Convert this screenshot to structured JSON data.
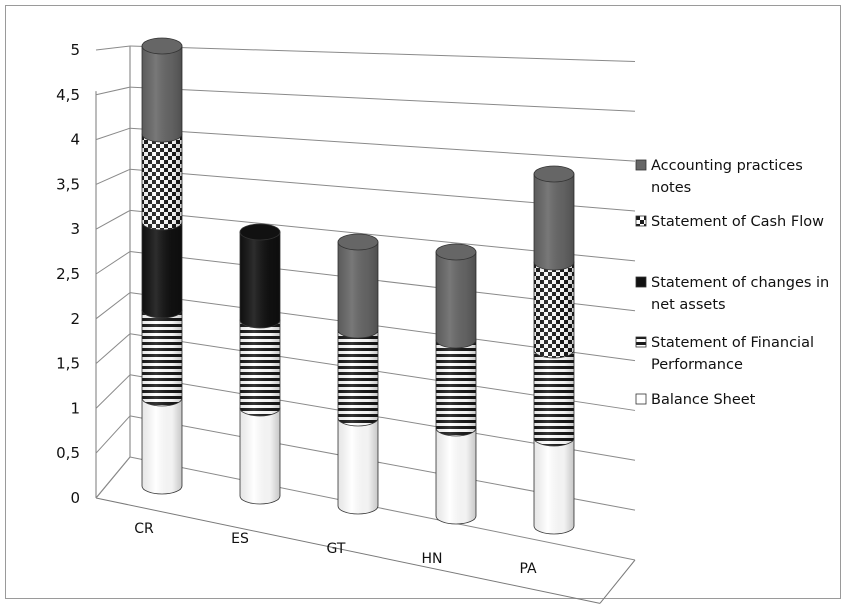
{
  "chart_data": {
    "type": "bar",
    "stacked": true,
    "style": "3d-cylinder",
    "categories": [
      "CR",
      "ES",
      "GT",
      "HN",
      "PA"
    ],
    "series": [
      {
        "name": "Balance Sheet",
        "values": [
          1,
          1,
          1,
          1,
          1
        ],
        "fill": "white"
      },
      {
        "name": "Statement of Financial Performance",
        "values": [
          1,
          1,
          1,
          1,
          1
        ],
        "fill": "horizontal-stripes"
      },
      {
        "name": "Statement of changes in net assets",
        "values": [
          1,
          1,
          0,
          0,
          0
        ],
        "fill": "#111111"
      },
      {
        "name": "Statement of Cash Flow",
        "values": [
          1,
          0,
          0,
          0,
          1
        ],
        "fill": "checker"
      },
      {
        "name": "Accounting practices notes",
        "values": [
          1,
          0,
          1,
          1,
          1
        ],
        "fill": "#666666"
      }
    ],
    "yticks": [
      "0",
      "0,5",
      "1",
      "1,5",
      "2",
      "2,5",
      "3",
      "3,5",
      "4",
      "4,5",
      "5"
    ],
    "ylim": [
      0,
      5
    ],
    "grid": true,
    "legend_position": "right",
    "legend": [
      {
        "series": 4,
        "lines": [
          "Accounting practices",
          "notes"
        ]
      },
      {
        "series": 3,
        "lines": [
          "Statement of Cash Flow"
        ]
      },
      {
        "series": 2,
        "lines": [
          "Statement of changes in",
          "net assets"
        ]
      },
      {
        "series": 1,
        "lines": [
          "Statement of Financial",
          "Performance"
        ]
      },
      {
        "series": 0,
        "lines": [
          "Balance Sheet"
        ]
      }
    ]
  }
}
